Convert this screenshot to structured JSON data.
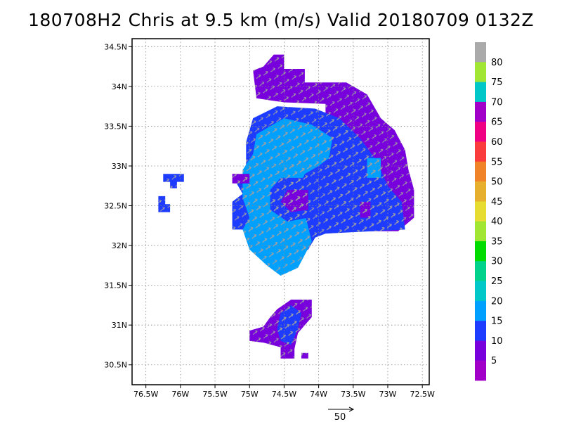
{
  "title": "180708H2 Chris at 9.5 km (m/s) Valid 20180709 0132Z",
  "chart_data": {
    "type": "heatmap",
    "title": "180708H2 Chris at 9.5 km (m/s) Valid 20180709 0132Z",
    "xlabel": "",
    "ylabel": "",
    "xlim": [
      -76.7,
      -72.4
    ],
    "ylim": [
      30.25,
      34.6
    ],
    "x_ticks": [
      {
        "value": -76.5,
        "label": "76.5W"
      },
      {
        "value": -76,
        "label": "76W"
      },
      {
        "value": -75.5,
        "label": "75.5W"
      },
      {
        "value": -75,
        "label": "75W"
      },
      {
        "value": -74.5,
        "label": "74.5W"
      },
      {
        "value": -74,
        "label": "74W"
      },
      {
        "value": -73.5,
        "label": "73.5W"
      },
      {
        "value": -73,
        "label": "73W"
      },
      {
        "value": -72.5,
        "label": "72.5W"
      }
    ],
    "y_ticks": [
      {
        "value": 30.5,
        "label": "30.5N"
      },
      {
        "value": 31,
        "label": "31N"
      },
      {
        "value": 31.5,
        "label": "31.5N"
      },
      {
        "value": 32,
        "label": "32N"
      },
      {
        "value": 32.5,
        "label": "32.5N"
      },
      {
        "value": 33,
        "label": "33N"
      },
      {
        "value": 33.5,
        "label": "33.5N"
      },
      {
        "value": 34,
        "label": "34N"
      },
      {
        "value": 34.5,
        "label": "34.5N"
      }
    ],
    "grid": true,
    "colorbar": {
      "labels": [
        "5",
        "10",
        "15",
        "20",
        "25",
        "30",
        "35",
        "40",
        "45",
        "50",
        "55",
        "60",
        "65",
        "70",
        "75",
        "80"
      ],
      "colors": [
        "#a000c8",
        "#7800dc",
        "#1e3cff",
        "#00a0ff",
        "#00c8c8",
        "#00d28c",
        "#00dc00",
        "#a0e632",
        "#e6dc32",
        "#e6af2d",
        "#f08228",
        "#fa3c3c",
        "#f00082",
        "#a000c8",
        "#00c8c8",
        "#a0e632",
        "#aaaaaa"
      ]
    },
    "regions": [
      {
        "level": 10,
        "points": [
          [
            -74.65,
            34.4
          ],
          [
            -74.5,
            34.4
          ],
          [
            -74.5,
            34.22
          ],
          [
            -74.2,
            34.22
          ],
          [
            -74.2,
            34.05
          ],
          [
            -73.6,
            34.05
          ],
          [
            -73.3,
            33.9
          ],
          [
            -73.1,
            33.6
          ],
          [
            -72.9,
            33.45
          ],
          [
            -72.75,
            33.2
          ],
          [
            -72.7,
            32.95
          ],
          [
            -72.62,
            32.7
          ],
          [
            -72.62,
            32.35
          ],
          [
            -72.85,
            32.18
          ],
          [
            -73.9,
            32.18
          ],
          [
            -73.9,
            33.78
          ],
          [
            -74.5,
            33.8
          ],
          [
            -74.9,
            33.85
          ],
          [
            -74.95,
            34.2
          ],
          [
            -74.8,
            34.25
          ]
        ]
      },
      {
        "level": 15,
        "points": [
          [
            -74.95,
            33.6
          ],
          [
            -74.6,
            33.75
          ],
          [
            -74.05,
            33.72
          ],
          [
            -73.7,
            33.6
          ],
          [
            -73.4,
            33.35
          ],
          [
            -73.15,
            33.05
          ],
          [
            -73.0,
            32.75
          ],
          [
            -72.8,
            32.55
          ],
          [
            -72.75,
            32.2
          ],
          [
            -73.9,
            32.15
          ],
          [
            -74.05,
            32.1
          ],
          [
            -74.15,
            31.95
          ],
          [
            -74.4,
            31.82
          ],
          [
            -74.75,
            31.85
          ],
          [
            -74.95,
            32.0
          ],
          [
            -75.05,
            32.2
          ],
          [
            -75.25,
            32.2
          ],
          [
            -75.25,
            32.55
          ],
          [
            -75.1,
            32.65
          ],
          [
            -75.2,
            32.8
          ],
          [
            -75.05,
            32.95
          ],
          [
            -75.05,
            33.3
          ]
        ]
      },
      {
        "level": 20,
        "points": [
          [
            -74.9,
            33.4
          ],
          [
            -74.5,
            33.6
          ],
          [
            -74.1,
            33.52
          ],
          [
            -73.8,
            33.35
          ],
          [
            -73.85,
            33.1
          ],
          [
            -74.0,
            33.0
          ],
          [
            -74.2,
            32.9
          ],
          [
            -74.3,
            32.7
          ],
          [
            -74.2,
            32.4
          ],
          [
            -74.1,
            32.05
          ],
          [
            -74.3,
            31.72
          ],
          [
            -74.55,
            31.62
          ],
          [
            -74.75,
            31.75
          ],
          [
            -75.0,
            31.95
          ],
          [
            -75.1,
            32.2
          ],
          [
            -75.0,
            32.35
          ],
          [
            -75.1,
            32.6
          ],
          [
            -75.1,
            32.95
          ],
          [
            -74.95,
            33.15
          ]
        ]
      },
      {
        "level": 15,
        "points": [
          [
            -74.55,
            32.85
          ],
          [
            -74.2,
            32.85
          ],
          [
            -74.05,
            32.6
          ],
          [
            -74.15,
            32.35
          ],
          [
            -74.45,
            32.3
          ],
          [
            -74.7,
            32.45
          ],
          [
            -74.7,
            32.7
          ]
        ]
      },
      {
        "level": 10,
        "points": [
          [
            -74.45,
            32.7
          ],
          [
            -74.15,
            32.7
          ],
          [
            -74.15,
            32.45
          ],
          [
            -74.4,
            32.42
          ],
          [
            -74.55,
            32.55
          ]
        ]
      },
      {
        "level": 20,
        "points": [
          [
            -74.5,
            33.1
          ],
          [
            -74.2,
            33.12
          ],
          [
            -74.1,
            32.95
          ],
          [
            -74.35,
            32.9
          ],
          [
            -74.55,
            32.98
          ]
        ]
      },
      {
        "level": 20,
        "points": [
          [
            -73.3,
            33.1
          ],
          [
            -73.1,
            33.1
          ],
          [
            -73.1,
            32.85
          ],
          [
            -73.3,
            32.85
          ]
        ]
      },
      {
        "level": 10,
        "points": [
          [
            -75.25,
            32.9
          ],
          [
            -75.0,
            32.9
          ],
          [
            -75.0,
            32.78
          ],
          [
            -75.25,
            32.78
          ]
        ]
      },
      {
        "level": 10,
        "points": [
          [
            -73.4,
            32.55
          ],
          [
            -73.25,
            32.55
          ],
          [
            -73.25,
            32.35
          ],
          [
            -73.4,
            32.35
          ]
        ]
      },
      {
        "level": 15,
        "points": [
          [
            -76.25,
            32.9
          ],
          [
            -75.95,
            32.9
          ],
          [
            -75.95,
            32.8
          ],
          [
            -76.05,
            32.8
          ],
          [
            -76.05,
            32.72
          ],
          [
            -76.15,
            32.72
          ],
          [
            -76.15,
            32.8
          ],
          [
            -76.25,
            32.8
          ]
        ]
      },
      {
        "level": 15,
        "points": [
          [
            -76.32,
            32.62
          ],
          [
            -76.22,
            32.62
          ],
          [
            -76.22,
            32.52
          ],
          [
            -76.15,
            32.52
          ],
          [
            -76.15,
            32.42
          ],
          [
            -76.32,
            32.42
          ]
        ]
      },
      {
        "level": 10,
        "points": [
          [
            -74.6,
            31.2
          ],
          [
            -74.4,
            31.32
          ],
          [
            -74.1,
            31.32
          ],
          [
            -74.1,
            31.1
          ],
          [
            -74.3,
            30.9
          ],
          [
            -74.35,
            30.7
          ],
          [
            -74.35,
            30.58
          ],
          [
            -74.55,
            30.58
          ],
          [
            -74.55,
            30.72
          ],
          [
            -74.8,
            30.78
          ],
          [
            -75.0,
            30.8
          ],
          [
            -75.0,
            30.93
          ],
          [
            -74.8,
            30.98
          ],
          [
            -74.7,
            31.1
          ]
        ]
      },
      {
        "level": 15,
        "points": [
          [
            -74.55,
            31.15
          ],
          [
            -74.4,
            31.25
          ],
          [
            -74.25,
            31.15
          ],
          [
            -74.3,
            30.95
          ],
          [
            -74.4,
            30.75
          ],
          [
            -74.55,
            30.8
          ],
          [
            -74.6,
            30.95
          ]
        ]
      },
      {
        "level": 10,
        "points": [
          [
            -74.25,
            30.65
          ],
          [
            -74.15,
            30.65
          ],
          [
            -74.15,
            30.58
          ],
          [
            -74.25,
            30.58
          ]
        ]
      }
    ]
  },
  "scale_arrow": {
    "label": "50"
  }
}
